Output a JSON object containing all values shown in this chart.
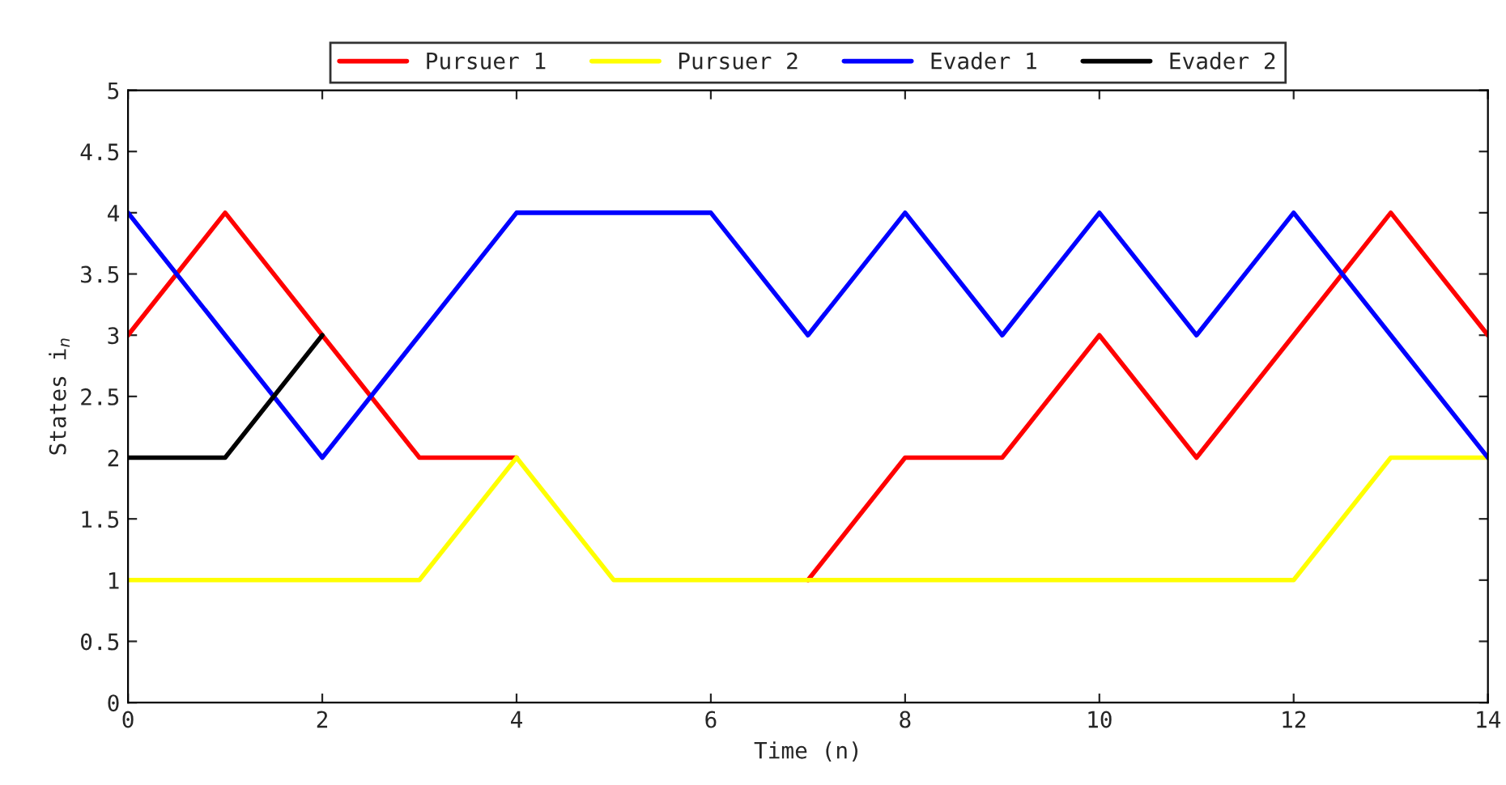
{
  "chart_data": {
    "type": "line",
    "xlabel": "Time (n)",
    "ylabel": "States i$_{n}$",
    "x": [
      0,
      1,
      2,
      3,
      4,
      5,
      6,
      7,
      8,
      9,
      10,
      11,
      12,
      13,
      14
    ],
    "series": [
      {
        "name": "Pursuer 1",
        "color": "#ff0000",
        "values": [
          3,
          4,
          3,
          2,
          2,
          null,
          null,
          1,
          2,
          2,
          3,
          2,
          3,
          4,
          3
        ]
      },
      {
        "name": "Pursuer 2",
        "color": "#ffff00",
        "values": [
          1,
          1,
          1,
          1,
          2,
          1,
          1,
          1,
          1,
          1,
          1,
          1,
          1,
          2,
          2
        ]
      },
      {
        "name": "Evader 1",
        "color": "#0000ff",
        "values": [
          4,
          3,
          2,
          3,
          4,
          4,
          4,
          3,
          4,
          3,
          4,
          3,
          4,
          3,
          2
        ]
      },
      {
        "name": "Evader 2",
        "color": "#000000",
        "x": [
          0,
          1,
          2
        ],
        "values": [
          2,
          2,
          3
        ]
      }
    ],
    "xlim": [
      0,
      14
    ],
    "xticks": [
      0,
      2,
      4,
      6,
      8,
      10,
      12,
      14
    ],
    "ylim": [
      0,
      5
    ],
    "yticks": [
      0,
      0.5,
      1,
      1.5,
      2,
      2.5,
      3,
      3.5,
      4,
      4.5,
      5
    ],
    "grid": false,
    "legend": "top",
    "marker": "none",
    "line_style": "solid"
  }
}
